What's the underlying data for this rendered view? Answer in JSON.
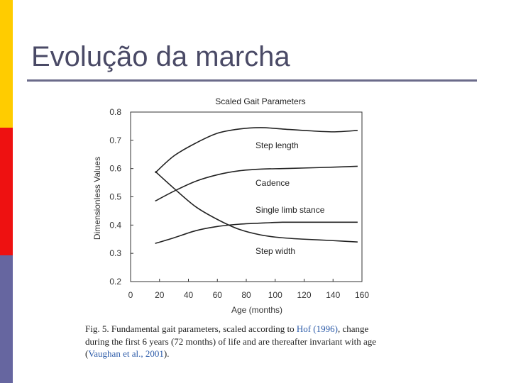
{
  "slide": {
    "title": "Evolução da marcha",
    "colors": {
      "bar_top": "#ffcc00",
      "bar_mid": "#ee1111",
      "bar_bottom": "#6666a0",
      "title": "#4a4a66",
      "rule": "#6b6b8a",
      "link": "#2b5aa8"
    }
  },
  "caption": {
    "part1": "Fig. 5.  Fundamental gait parameters, scaled according to ",
    "ref1": "Hof (1996)",
    "part2": ", change during the first 6 years (72 months) of life and are thereafter invariant with age (",
    "ref2": "Vaughan et al., 2001",
    "part3": ")."
  },
  "chart_data": {
    "type": "line",
    "title": "Scaled Gait Parameters",
    "xlabel": "Age (months)",
    "ylabel": "Dimensionless Values",
    "xlim": [
      0,
      160
    ],
    "ylim": [
      0.2,
      0.8
    ],
    "xticks": [
      "0",
      "20",
      "40",
      "60",
      "80",
      "100",
      "120",
      "140",
      "160"
    ],
    "yticks": [
      "0.2",
      "0.3",
      "0.4",
      "0.5",
      "0.6",
      "0.7",
      "0.8"
    ],
    "grid": false,
    "legend": "inline labels",
    "series": [
      {
        "name": "Step length",
        "x": [
          17,
          30,
          45,
          60,
          75,
          90,
          105,
          120,
          140,
          157
        ],
        "y": [
          0.585,
          0.645,
          0.69,
          0.725,
          0.74,
          0.745,
          0.74,
          0.735,
          0.73,
          0.735
        ]
      },
      {
        "name": "Cadence",
        "x": [
          17,
          30,
          45,
          60,
          75,
          90,
          105,
          120,
          140,
          157
        ],
        "y": [
          0.485,
          0.52,
          0.555,
          0.578,
          0.592,
          0.598,
          0.6,
          0.602,
          0.605,
          0.608
        ]
      },
      {
        "name": "Single limb stance",
        "x": [
          17,
          30,
          45,
          60,
          75,
          90,
          105,
          120,
          140,
          157
        ],
        "y": [
          0.335,
          0.355,
          0.38,
          0.395,
          0.403,
          0.407,
          0.41,
          0.41,
          0.41,
          0.41
        ]
      },
      {
        "name": "Step width",
        "x": [
          17,
          30,
          45,
          60,
          75,
          90,
          105,
          120,
          140,
          157
        ],
        "y": [
          0.59,
          0.53,
          0.465,
          0.42,
          0.385,
          0.365,
          0.355,
          0.35,
          0.345,
          0.34
        ]
      }
    ]
  }
}
